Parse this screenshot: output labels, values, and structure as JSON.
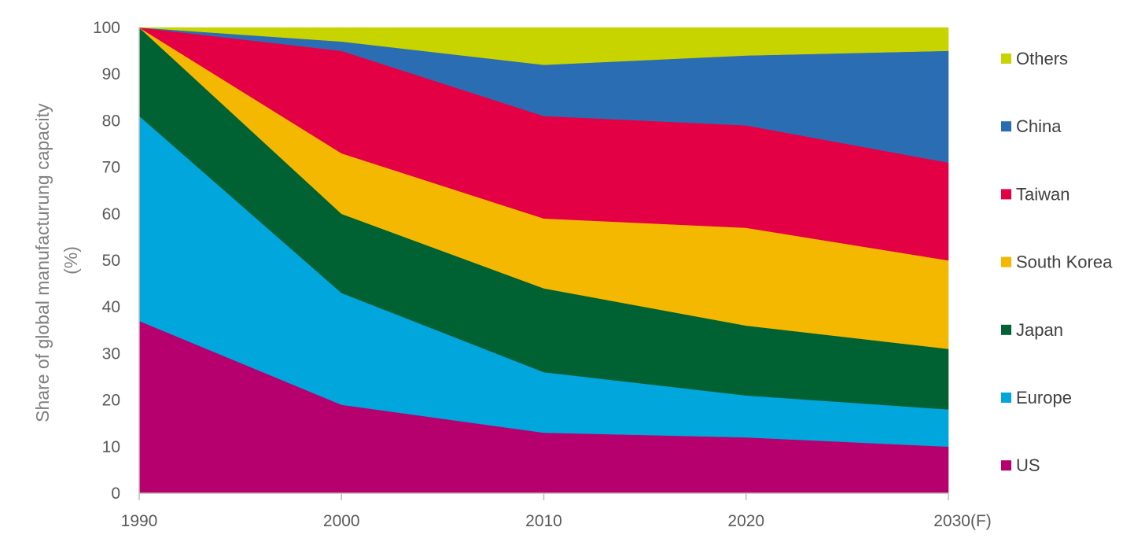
{
  "chart_data": {
    "type": "area",
    "stacked": true,
    "title": "",
    "xlabel": "",
    "ylabel_lines": [
      "Share of global manufacturung capacity",
      "(%)"
    ],
    "categories": [
      "1990",
      "2000",
      "2010",
      "2020",
      "2030(F)"
    ],
    "ylim": [
      0,
      100
    ],
    "yticks": [
      0,
      10,
      20,
      30,
      40,
      50,
      60,
      70,
      80,
      90,
      100
    ],
    "grid": false,
    "legend_position": "right",
    "series": [
      {
        "name": "US",
        "color": "#b5006e",
        "values": [
          37,
          19,
          13,
          12,
          10
        ]
      },
      {
        "name": "Europe",
        "color": "#00a6dc",
        "values": [
          44,
          24,
          13,
          9,
          8
        ]
      },
      {
        "name": "Japan",
        "color": "#006233",
        "values": [
          19,
          17,
          18,
          15,
          13
        ]
      },
      {
        "name": "South Korea",
        "color": "#f5b800",
        "values": [
          0,
          13,
          15,
          21,
          19
        ]
      },
      {
        "name": "Taiwan",
        "color": "#e30045",
        "values": [
          0,
          22,
          22,
          22,
          21
        ]
      },
      {
        "name": "China",
        "color": "#2b6db3",
        "values": [
          0,
          2,
          11,
          15,
          24
        ]
      },
      {
        "name": "Others",
        "color": "#c8d400",
        "values": [
          0,
          3,
          8,
          6,
          5
        ]
      }
    ]
  }
}
